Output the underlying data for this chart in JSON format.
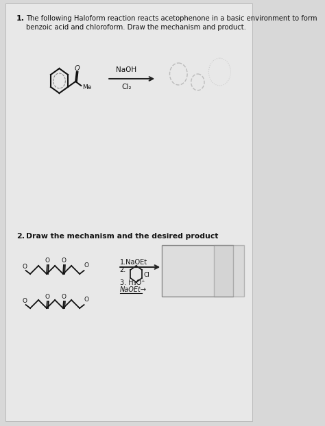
{
  "bg_color": "#d8d8d8",
  "paper_color": "#e8e8e8",
  "title1": "1.   The following Haloform reaction reacts acetophenone in a basic environment to form\n      benzoic acid and chloroform. Draw the mechanism and product.",
  "title2": "2.   Draw the mechanism and the desired product",
  "q1_reagent_top": "NaOH",
  "q1_reagent_bot": "Cl₂",
  "q2_reagent1": "1.NaOEt",
  "q2_reagent2": "2.",
  "q2_reagent3": "3. H₃O⁺",
  "q2_reagent4": "NaOEt→",
  "arrow_color": "#222222",
  "text_color": "#111111",
  "molecule_color": "#111111",
  "fig_width": 4.74,
  "fig_height": 6.22,
  "dpi": 100
}
